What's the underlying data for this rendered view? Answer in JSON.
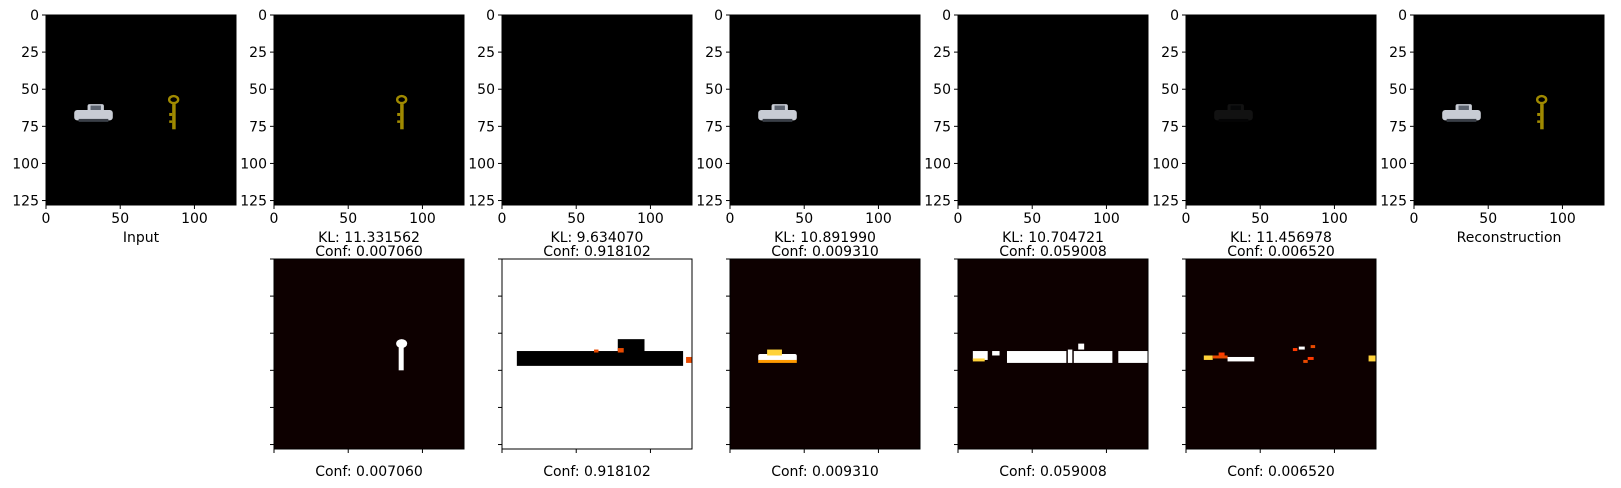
{
  "chart_data": {
    "type": "image_grid",
    "image_size": 128,
    "x_ticks": [
      0,
      50,
      100
    ],
    "y_ticks": [
      0,
      25,
      50,
      75,
      100,
      125
    ],
    "top_row": [
      {
        "caption_lines": [
          "Input"
        ],
        "content": "full"
      },
      {
        "caption_lines": [
          "KL: 11.331562",
          "Conf: 0.007060"
        ],
        "kl": 11.331562,
        "conf": 0.00706,
        "content": "key"
      },
      {
        "caption_lines": [
          "KL: 9.634070",
          "Conf: 0.918102"
        ],
        "kl": 9.63407,
        "conf": 0.918102,
        "content": "faint"
      },
      {
        "caption_lines": [
          "KL: 10.891990",
          "Conf: 0.009310"
        ],
        "kl": 10.89199,
        "conf": 0.00931,
        "content": "car"
      },
      {
        "caption_lines": [
          "KL: 10.704721",
          "Conf: 0.059008"
        ],
        "kl": 10.704721,
        "conf": 0.059008,
        "content": "faint"
      },
      {
        "caption_lines": [
          "KL: 11.456978",
          "Conf: 0.006520"
        ],
        "kl": 11.456978,
        "conf": 0.00652,
        "content": "faint_car"
      },
      {
        "caption_lines": [
          "Reconstruction"
        ],
        "content": "full"
      }
    ],
    "mask_row": [
      {
        "caption": "Conf: 0.007060",
        "conf": 0.00706,
        "mask": "key"
      },
      {
        "caption": "Conf: 0.918102",
        "conf": 0.918102,
        "mask": "background"
      },
      {
        "caption": "Conf: 0.009310",
        "conf": 0.00931,
        "mask": "car"
      },
      {
        "caption": "Conf: 0.059008",
        "conf": 0.059008,
        "mask": "strip"
      },
      {
        "caption": "Conf: 0.006520",
        "conf": 0.00652,
        "mask": "specks"
      }
    ],
    "colors": {
      "image_bg": "#000000",
      "mask_bg": "#0d0000",
      "mask_hot": "#ffffff",
      "key": "#a08a00",
      "car": "#c8ccd4"
    }
  }
}
